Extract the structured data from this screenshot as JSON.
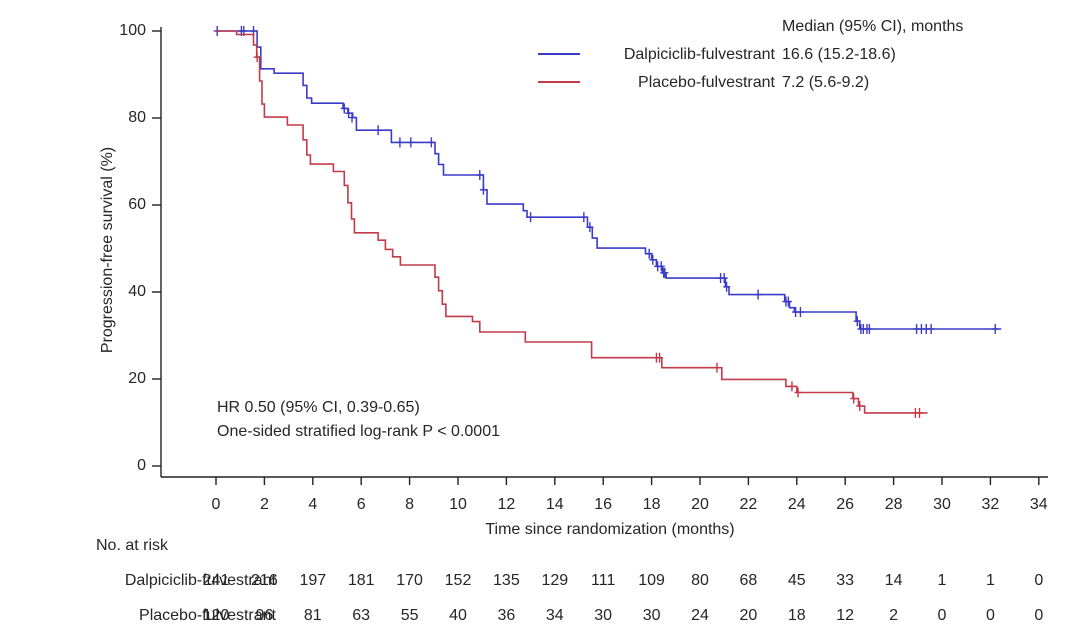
{
  "chart_data": {
    "type": "line",
    "subtype": "kaplan-meier-step",
    "title": "",
    "xlabel": "Time since randomization (months)",
    "ylabel": "Progression-free survival (%)",
    "xlim": [
      0,
      34
    ],
    "ylim": [
      0,
      100
    ],
    "xticks": [
      0,
      2,
      4,
      6,
      8,
      10,
      12,
      14,
      16,
      18,
      20,
      22,
      24,
      26,
      28,
      30,
      32,
      34
    ],
    "yticks": [
      0,
      20,
      40,
      60,
      80,
      100
    ],
    "grid": false,
    "legend_position": "top-right",
    "legend_header": "Median (95% CI), months",
    "annotations": [
      "HR 0.50 (95% CI, 0.39-0.65)",
      "One-sided stratified log-rank P < 0.0001"
    ],
    "series": [
      {
        "name": "Dalpiciclib-fulvestrant",
        "median": "16.6 (15.2-18.6)",
        "color": "#3b3bc8",
        "steps": [
          [
            0,
            100
          ],
          [
            1.7,
            96.3
          ],
          [
            1.85,
            91.3
          ],
          [
            2.4,
            90.3
          ],
          [
            3.6,
            87.5
          ],
          [
            3.75,
            84.6
          ],
          [
            3.95,
            83.4
          ],
          [
            5.25,
            82.2
          ],
          [
            5.45,
            81.1
          ],
          [
            5.65,
            80.1
          ],
          [
            5.8,
            77.2
          ],
          [
            7.25,
            74.4
          ],
          [
            9.05,
            71.8
          ],
          [
            9.2,
            69.3
          ],
          [
            9.4,
            66.9
          ],
          [
            11.05,
            63.5
          ],
          [
            11.2,
            60.2
          ],
          [
            12.7,
            58.7
          ],
          [
            12.85,
            57.2
          ],
          [
            15.35,
            54.9
          ],
          [
            15.55,
            52.4
          ],
          [
            15.75,
            50.1
          ],
          [
            17.75,
            48.8
          ],
          [
            18.0,
            47.4
          ],
          [
            18.2,
            45.9
          ],
          [
            18.45,
            44.4
          ],
          [
            18.6,
            43.2
          ],
          [
            21.05,
            41.2
          ],
          [
            21.2,
            39.4
          ],
          [
            23.5,
            37.8
          ],
          [
            23.7,
            36.4
          ],
          [
            23.9,
            35.4
          ],
          [
            26.45,
            33.3
          ],
          [
            26.6,
            31.5
          ],
          [
            32.45,
            31.5
          ]
        ],
        "censors": [
          [
            0.05,
            100
          ],
          [
            1.05,
            100
          ],
          [
            1.15,
            100
          ],
          [
            1.55,
            100
          ],
          [
            5.3,
            82.2
          ],
          [
            5.48,
            81.1
          ],
          [
            5.62,
            80.1
          ],
          [
            6.7,
            77.2
          ],
          [
            7.6,
            74.4
          ],
          [
            8.05,
            74.4
          ],
          [
            8.9,
            74.4
          ],
          [
            10.9,
            66.9
          ],
          [
            11.05,
            63.5
          ],
          [
            13.0,
            57.2
          ],
          [
            15.2,
            57.2
          ],
          [
            15.45,
            54.9
          ],
          [
            17.9,
            48.8
          ],
          [
            18.05,
            47.4
          ],
          [
            18.25,
            45.9
          ],
          [
            18.4,
            45.9
          ],
          [
            18.5,
            44.4
          ],
          [
            18.55,
            44.4
          ],
          [
            20.85,
            43.2
          ],
          [
            21.0,
            43.2
          ],
          [
            21.1,
            41.2
          ],
          [
            22.4,
            39.4
          ],
          [
            23.55,
            37.8
          ],
          [
            23.65,
            37.8
          ],
          [
            23.95,
            35.4
          ],
          [
            24.15,
            35.4
          ],
          [
            26.5,
            33.3
          ],
          [
            26.65,
            31.5
          ],
          [
            26.75,
            31.5
          ],
          [
            26.9,
            31.5
          ],
          [
            27.0,
            31.5
          ],
          [
            28.95,
            31.5
          ],
          [
            29.15,
            31.5
          ],
          [
            29.35,
            31.5
          ],
          [
            29.55,
            31.5
          ],
          [
            32.2,
            31.5
          ]
        ]
      },
      {
        "name": "Placebo-fulvestrant",
        "median": "7.2 (5.6-9.2)",
        "color": "#c23b4b",
        "steps": [
          [
            0,
            100
          ],
          [
            0.85,
            99.2
          ],
          [
            1.55,
            96.8
          ],
          [
            1.68,
            94
          ],
          [
            1.8,
            88.5
          ],
          [
            1.9,
            83.2
          ],
          [
            2.0,
            80.2
          ],
          [
            2.95,
            78.4
          ],
          [
            3.6,
            75
          ],
          [
            3.75,
            71.5
          ],
          [
            3.9,
            69.4
          ],
          [
            4.85,
            67.7
          ],
          [
            5.3,
            64.5
          ],
          [
            5.45,
            60.5
          ],
          [
            5.6,
            56.8
          ],
          [
            5.72,
            53.6
          ],
          [
            6.7,
            51.9
          ],
          [
            7.0,
            49.8
          ],
          [
            7.3,
            48.1
          ],
          [
            7.62,
            46.2
          ],
          [
            9.05,
            43.4
          ],
          [
            9.2,
            40.3
          ],
          [
            9.35,
            37.2
          ],
          [
            9.5,
            34.4
          ],
          [
            10.6,
            33.2
          ],
          [
            10.9,
            30.8
          ],
          [
            12.78,
            28.5
          ],
          [
            15.52,
            24.9
          ],
          [
            18.42,
            22.6
          ],
          [
            20.9,
            19.9
          ],
          [
            23.55,
            18.3
          ],
          [
            24.0,
            16.9
          ],
          [
            26.32,
            15.5
          ],
          [
            26.55,
            13.8
          ],
          [
            26.8,
            12.2
          ],
          [
            29.4,
            12.2
          ]
        ],
        "censors": [
          [
            1.7,
            94
          ],
          [
            18.2,
            24.9
          ],
          [
            18.33,
            24.9
          ],
          [
            20.7,
            22.6
          ],
          [
            23.8,
            18.3
          ],
          [
            24.05,
            16.9
          ],
          [
            26.35,
            15.5
          ],
          [
            26.6,
            13.8
          ],
          [
            28.9,
            12.2
          ],
          [
            29.07,
            12.2
          ]
        ]
      }
    ]
  },
  "risk_table": {
    "title": "No. at risk",
    "times": [
      0,
      2,
      4,
      6,
      8,
      10,
      12,
      14,
      16,
      18,
      20,
      22,
      24,
      26,
      28,
      30,
      32,
      34
    ],
    "rows": [
      {
        "label": "Dalpiciclib-fulvestrant",
        "counts": [
          241,
          216,
          197,
          181,
          170,
          152,
          135,
          129,
          111,
          109,
          80,
          68,
          45,
          33,
          14,
          1,
          1,
          0
        ]
      },
      {
        "label": "Placebo-fulvestrant",
        "counts": [
          120,
          96,
          81,
          63,
          55,
          40,
          36,
          34,
          30,
          30,
          24,
          20,
          18,
          12,
          2,
          0,
          0,
          0
        ]
      }
    ]
  }
}
